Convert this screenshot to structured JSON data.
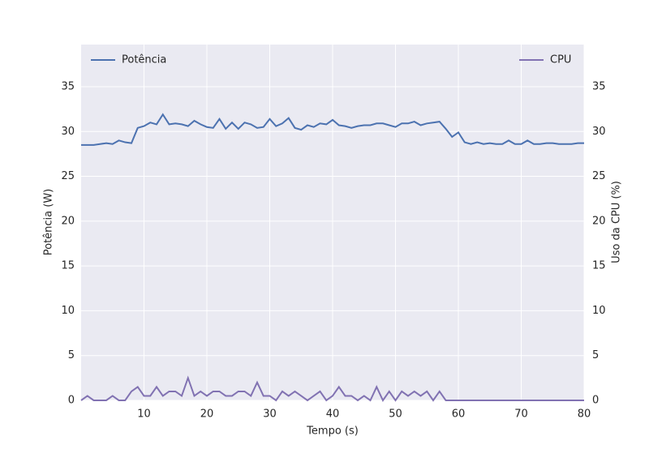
{
  "chart_data": {
    "type": "line",
    "xlabel": "Tempo (s)",
    "ylabel": "Potência (W)",
    "y2label": "Uso da CPU (%)",
    "x": [
      0,
      1,
      2,
      3,
      4,
      5,
      6,
      7,
      8,
      9,
      10,
      11,
      12,
      13,
      14,
      15,
      16,
      17,
      18,
      19,
      20,
      21,
      22,
      23,
      24,
      25,
      26,
      27,
      28,
      29,
      30,
      31,
      32,
      33,
      34,
      35,
      36,
      37,
      38,
      39,
      40,
      41,
      42,
      43,
      44,
      45,
      46,
      47,
      48,
      49,
      50,
      51,
      52,
      53,
      54,
      55,
      56,
      57,
      58,
      59,
      60,
      61,
      62,
      63,
      64,
      65,
      66,
      67,
      68,
      69,
      70,
      71,
      72,
      73,
      74,
      75,
      76,
      77,
      78,
      79,
      80
    ],
    "series": [
      {
        "name": "Potência",
        "color": "#4c72b0",
        "axis": "y",
        "legend": "upper left",
        "values": [
          28.5,
          28.5,
          28.5,
          28.6,
          28.7,
          28.6,
          29.0,
          28.8,
          28.7,
          30.4,
          30.6,
          31.0,
          30.8,
          31.9,
          30.8,
          30.9,
          30.8,
          30.6,
          31.2,
          30.8,
          30.5,
          30.4,
          31.4,
          30.3,
          31.0,
          30.3,
          31.0,
          30.8,
          30.4,
          30.5,
          31.4,
          30.6,
          30.9,
          31.5,
          30.4,
          30.2,
          30.7,
          30.5,
          30.9,
          30.8,
          31.3,
          30.7,
          30.6,
          30.4,
          30.6,
          30.7,
          30.7,
          30.9,
          30.9,
          30.7,
          30.5,
          30.9,
          30.9,
          31.1,
          30.7,
          30.9,
          31.0,
          31.1,
          30.3,
          29.4,
          29.9,
          28.8,
          28.6,
          28.8,
          28.6,
          28.7,
          28.6,
          28.6,
          29.0,
          28.6,
          28.6,
          29.0,
          28.6,
          28.6,
          28.7,
          28.7,
          28.6,
          28.6,
          28.6,
          28.7,
          28.7
        ]
      },
      {
        "name": "CPU",
        "color": "#8172b2",
        "axis": "y2",
        "legend": "upper right",
        "values": [
          0,
          0.5,
          0,
          0,
          0,
          0.5,
          0,
          0,
          1,
          1.5,
          0.5,
          0.5,
          1.5,
          0.5,
          1,
          1,
          0.5,
          2.5,
          0.5,
          1,
          0.5,
          1,
          1,
          0.5,
          0.5,
          1,
          1,
          0.5,
          2,
          0.5,
          0.5,
          0,
          1,
          0.5,
          1,
          0.5,
          0,
          0.5,
          1,
          0,
          0.5,
          1.5,
          0.5,
          0.5,
          0,
          0.5,
          0,
          1.5,
          0,
          1,
          0,
          1,
          0.5,
          1,
          0.5,
          1,
          0,
          1,
          0,
          0,
          0,
          0,
          0,
          0,
          0,
          0,
          0,
          0,
          0,
          0,
          0,
          0,
          0,
          0,
          0,
          0,
          0,
          0,
          0,
          0,
          0
        ]
      }
    ],
    "xlim": [
      0,
      80
    ],
    "xticks": [
      10,
      20,
      30,
      40,
      50,
      60,
      70,
      80
    ],
    "ylim": [
      0,
      39.7
    ],
    "yticks": [
      0,
      5,
      10,
      15,
      20,
      25,
      30,
      35
    ],
    "y2lim": [
      0,
      39.7
    ],
    "y2ticks": [
      0,
      5,
      10,
      15,
      20,
      25,
      30,
      35
    ],
    "grid": true
  }
}
